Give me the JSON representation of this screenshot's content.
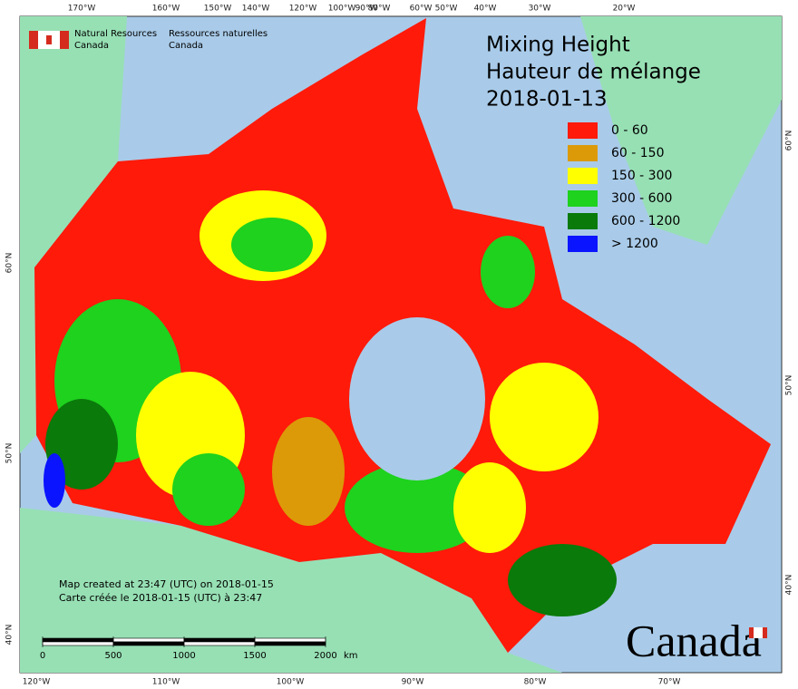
{
  "header": {
    "agency_en": [
      "Natural Resources",
      "Canada"
    ],
    "agency_fr": [
      "Ressources naturelles",
      "Canada"
    ]
  },
  "title": [
    "Mixing Height",
    "Hauteur de mélange",
    "2018-01-13"
  ],
  "legend": [
    {
      "label": "0 - 60",
      "color": "#ff1a0a"
    },
    {
      "label": "60 - 150",
      "color": "#dc9a08"
    },
    {
      "label": "150 - 300",
      "color": "#ffff00"
    },
    {
      "label": "300 - 600",
      "color": "#1ed21e"
    },
    {
      "label": "600 - 1200",
      "color": "#0a7a0a"
    },
    {
      "label": "> 1200",
      "color": "#0a14ff"
    }
  ],
  "graticule": {
    "top": [
      "170°W",
      "160°W",
      "150°W",
      "140°W",
      "120°W",
      "100°W",
      "90°W",
      "80°W",
      "60°W",
      "50°W",
      "40°W",
      "30°W",
      "20°W"
    ],
    "bottom": [
      "120°W",
      "110°W",
      "100°W",
      "90°W",
      "80°W",
      "70°W"
    ],
    "left": [
      "60°N",
      "50°N",
      "40°N"
    ],
    "right": [
      "60°N",
      "50°N",
      "40°N"
    ]
  },
  "notes": [
    "Map created at 23:47 (UTC) on 2018-01-15",
    "Carte créée le 2018-01-15 (UTC) à 23:47"
  ],
  "scale": {
    "ticks": [
      0,
      500,
      1000,
      1500,
      2000
    ],
    "unit": "km"
  },
  "wordmark": "Canada"
}
